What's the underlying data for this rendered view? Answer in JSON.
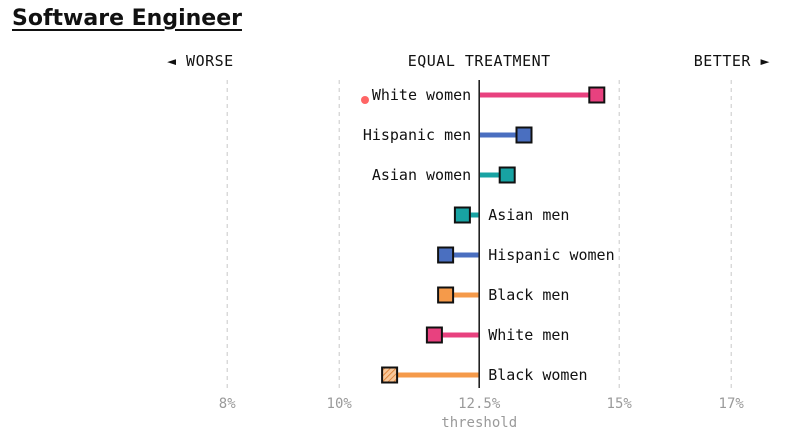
{
  "title": "Software Engineer",
  "chart_data": {
    "type": "dot-stem",
    "title": "Software Engineer",
    "header": {
      "left": "◄ WORSE",
      "center": "EQUAL TREATMENT",
      "right": "BETTER ►"
    },
    "threshold": 12.5,
    "threshold_label": "threshold",
    "xlim": [
      6.8,
      17.8
    ],
    "ticks": [
      {
        "value": 8,
        "label": "8%"
      },
      {
        "value": 10,
        "label": "10%"
      },
      {
        "value": 12.5,
        "label": "12.5%"
      },
      {
        "value": 15,
        "label": "15%"
      },
      {
        "value": 17,
        "label": "17%"
      }
    ],
    "series": [
      {
        "name": "White women",
        "value": 14.6,
        "color": "#e8417f"
      },
      {
        "name": "Hispanic men",
        "value": 13.3,
        "color": "#4a6fc0"
      },
      {
        "name": "Asian women",
        "value": 13.0,
        "color": "#18a3a3"
      },
      {
        "name": "Asian men",
        "value": 12.2,
        "color": "#18a3a3"
      },
      {
        "name": "Hispanic women",
        "value": 11.9,
        "color": "#4a6fc0"
      },
      {
        "name": "Black men",
        "value": 11.9,
        "color": "#f59a4a"
      },
      {
        "name": "White men",
        "value": 11.7,
        "color": "#e8417f"
      },
      {
        "name": "Black women",
        "value": 10.9,
        "color": "#f59a4a",
        "hatched": true
      }
    ]
  }
}
